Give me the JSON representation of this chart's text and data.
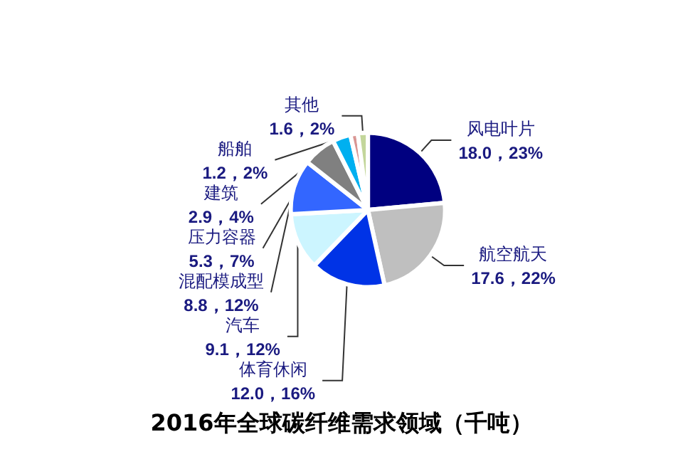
{
  "chart_data": {
    "type": "pie",
    "title": "2016年全球碳纤维需求领域（千吨）",
    "categories": [
      "风电叶片",
      "航空航天",
      "体育休闲",
      "汽车",
      "混配模成型",
      "压力容器",
      "建筑",
      "船舶",
      "其他"
    ],
    "values": [
      18.0,
      17.6,
      12.0,
      9.1,
      8.8,
      5.3,
      2.9,
      1.2,
      1.6
    ],
    "value_labels": [
      "18.0，23%",
      "17.6，22%",
      "12.0，16%",
      "9.1，12%",
      "8.8，12%",
      "5.3，7%",
      "2.9，4%",
      "1.2，2%",
      "1.6，2%"
    ],
    "colors": [
      "#000080",
      "#bfbfbf",
      "#0033e6",
      "#ccf5ff",
      "#3366ff",
      "#808080",
      "#00b0f0",
      "#d99694",
      "#c3d69b"
    ],
    "legend": false
  }
}
